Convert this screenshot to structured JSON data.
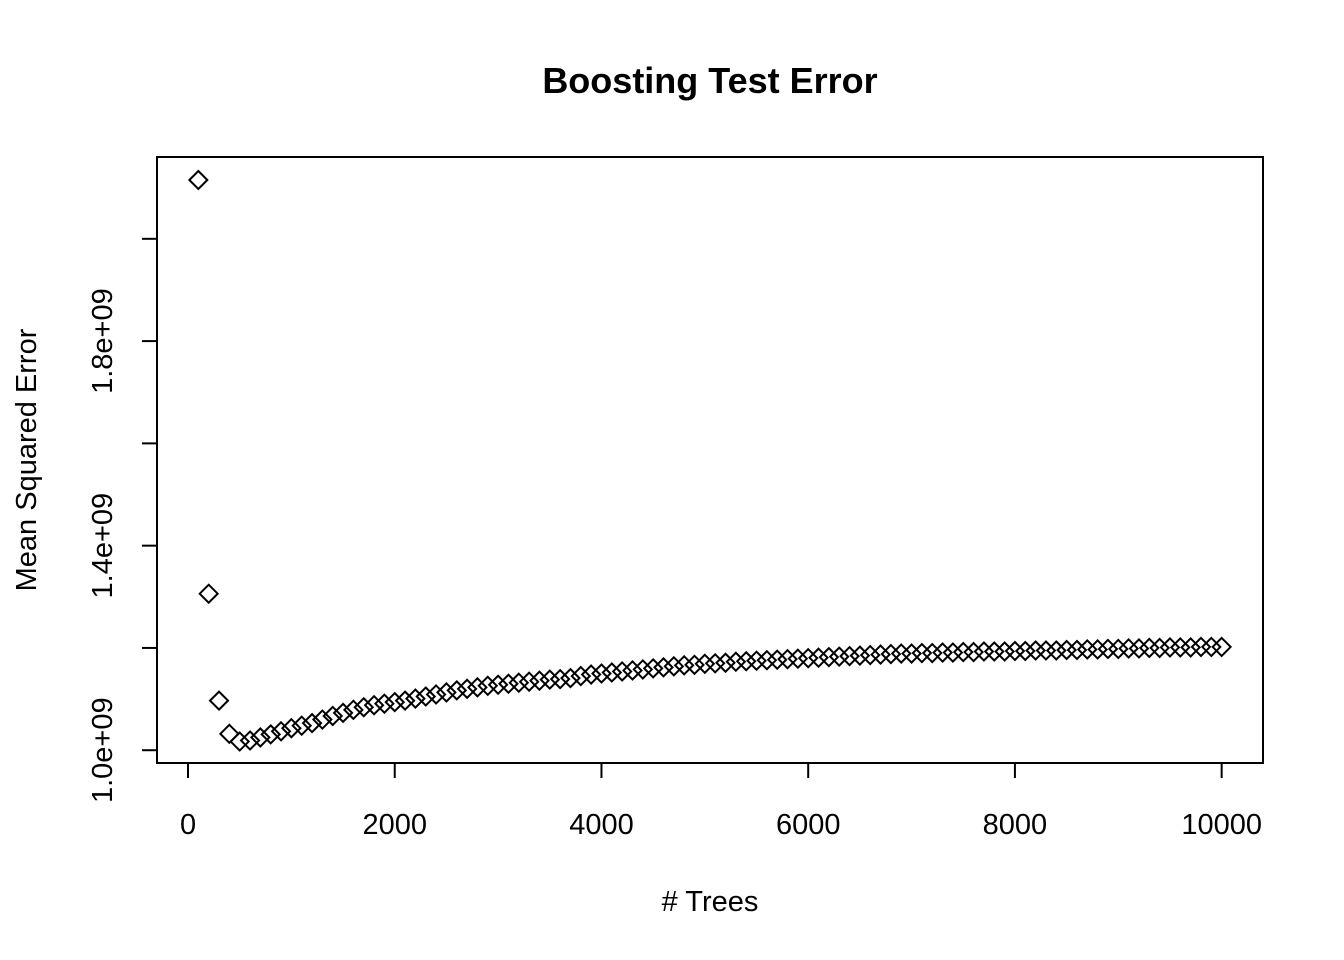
{
  "chart_data": {
    "type": "scatter",
    "title": "Boosting Test Error",
    "xlabel": "# Trees",
    "ylabel": "Mean Squared Error",
    "marker": "open-diamond",
    "x_ticks": [
      0,
      2000,
      4000,
      6000,
      8000,
      10000
    ],
    "x_tick_labels": [
      "0",
      "2000",
      "4000",
      "6000",
      "8000",
      "10000"
    ],
    "y_ticks": [
      1000000000,
      1200000000,
      1400000000,
      1600000000,
      1800000000,
      2000000000
    ],
    "y_tick_labels": [
      "1.0e+09",
      "",
      "1.4e+09",
      "",
      "1.8e+09",
      ""
    ],
    "xlim": [
      -300,
      10400
    ],
    "ylim": [
      975000000,
      2160000000
    ],
    "grid": false,
    "series": [
      {
        "x": [
          100,
          200,
          300,
          400,
          500,
          600,
          700,
          800,
          900,
          1000,
          1100,
          1200,
          1300,
          1400,
          1500,
          1600,
          1700,
          1800,
          1900,
          2000,
          2100,
          2200,
          2300,
          2400,
          2500,
          2600,
          2700,
          2800,
          2900,
          3000,
          3100,
          3200,
          3300,
          3400,
          3500,
          3600,
          3700,
          3800,
          3900,
          4000,
          4100,
          4200,
          4300,
          4400,
          4500,
          4600,
          4700,
          4800,
          4900,
          5000,
          5100,
          5200,
          5300,
          5400,
          5500,
          5600,
          5700,
          5800,
          5900,
          6000,
          6100,
          6200,
          6300,
          6400,
          6500,
          6600,
          6700,
          6800,
          6900,
          7000,
          7100,
          7200,
          7300,
          7400,
          7500,
          7600,
          7700,
          7800,
          7900,
          8000,
          8100,
          8200,
          8300,
          8400,
          8500,
          8600,
          8700,
          8800,
          8900,
          9000,
          9100,
          9200,
          9300,
          9400,
          9500,
          9600,
          9700,
          9800,
          9900,
          10000
        ],
        "y": [
          2115000000,
          1306000000,
          1097000000,
          1032000000,
          1017000000,
          1019000000,
          1025000000,
          1031000000,
          1037000000,
          1043000000,
          1048000000,
          1053000000,
          1060000000,
          1067000000,
          1073000000,
          1079000000,
          1084000000,
          1088000000,
          1091000000,
          1094000000,
          1097000000,
          1101000000,
          1105000000,
          1109000000,
          1113000000,
          1117000000,
          1120000000,
          1123000000,
          1126000000,
          1128000000,
          1130000000,
          1132000000,
          1134000000,
          1136000000,
          1138000000,
          1139000000,
          1141000000,
          1145000000,
          1148000000,
          1150000000,
          1152000000,
          1154000000,
          1156000000,
          1158000000,
          1160000000,
          1162000000,
          1164000000,
          1166000000,
          1167000000,
          1169000000,
          1170000000,
          1171000000,
          1173000000,
          1174000000,
          1175000000,
          1176000000,
          1177000000,
          1178000000,
          1179000000,
          1180000000,
          1181000000,
          1182000000,
          1183000000,
          1184000000,
          1185000000,
          1186000000,
          1187000000,
          1188000000,
          1189000000,
          1189000000,
          1190000000,
          1190000000,
          1191000000,
          1191000000,
          1192000000,
          1192000000,
          1193000000,
          1193000000,
          1193000000,
          1194000000,
          1194000000,
          1195000000,
          1195000000,
          1195000000,
          1196000000,
          1196000000,
          1197000000,
          1197000000,
          1198000000,
          1198000000,
          1199000000,
          1199000000,
          1200000000,
          1200000000,
          1201000000,
          1201000000,
          1201000000,
          1202000000,
          1202000000,
          1202000000
        ]
      }
    ]
  }
}
